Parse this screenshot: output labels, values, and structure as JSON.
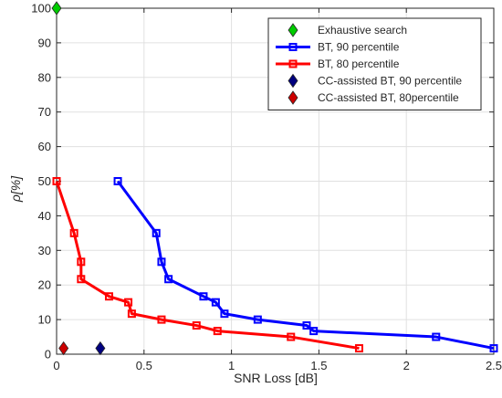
{
  "chart_data": {
    "type": "line",
    "xlabel": "SNR Loss [dB]",
    "ylabel": "ρ[%]",
    "xlim": [
      0,
      2.5
    ],
    "ylim": [
      0,
      100
    ],
    "xticks": [
      0,
      0.5,
      1,
      1.5,
      2,
      2.5
    ],
    "yticks": [
      0,
      10,
      20,
      30,
      40,
      50,
      60,
      70,
      80,
      90,
      100
    ],
    "xtick_labels": [
      "0",
      "0.5",
      "1",
      "1.5",
      "2",
      "2.5"
    ],
    "ytick_labels": [
      "0",
      "10",
      "20",
      "30",
      "40",
      "50",
      "60",
      "70",
      "80",
      "90",
      "100"
    ],
    "grid": true,
    "legend_position": "top-right",
    "series": [
      {
        "name": "Exhaustive search",
        "marker": "diamond",
        "line": false,
        "color": "#00cc00",
        "x": [
          0
        ],
        "y": [
          100
        ]
      },
      {
        "name": "BT, 90 percentile",
        "marker": "square",
        "line": true,
        "color": "#0000ff",
        "x": [
          0.35,
          0.57,
          0.6,
          0.64,
          0.84,
          0.91,
          0.96,
          1.15,
          1.43,
          1.47,
          2.17,
          2.5
        ],
        "y": [
          50,
          35,
          26.7,
          21.7,
          16.7,
          15,
          11.7,
          10,
          8.3,
          6.7,
          5,
          1.7
        ]
      },
      {
        "name": "BT, 80 percentile",
        "marker": "square",
        "line": true,
        "color": "#ff0000",
        "x": [
          0,
          0.1,
          0.14,
          0.14,
          0.3,
          0.41,
          0.43,
          0.6,
          0.8,
          0.92,
          1.34,
          1.73
        ],
        "y": [
          50,
          35,
          26.7,
          21.7,
          16.7,
          15,
          11.7,
          10,
          8.3,
          6.7,
          5,
          1.7
        ]
      },
      {
        "name": "CC-assisted BT, 90 percentile",
        "marker": "diamond",
        "line": false,
        "color": "#00007f",
        "x": [
          0.25
        ],
        "y": [
          1.7
        ]
      },
      {
        "name": "CC-assisted BT, 80percentile",
        "marker": "diamond",
        "line": false,
        "color": "#cc0000",
        "x": [
          0.04
        ],
        "y": [
          1.7
        ]
      }
    ]
  }
}
